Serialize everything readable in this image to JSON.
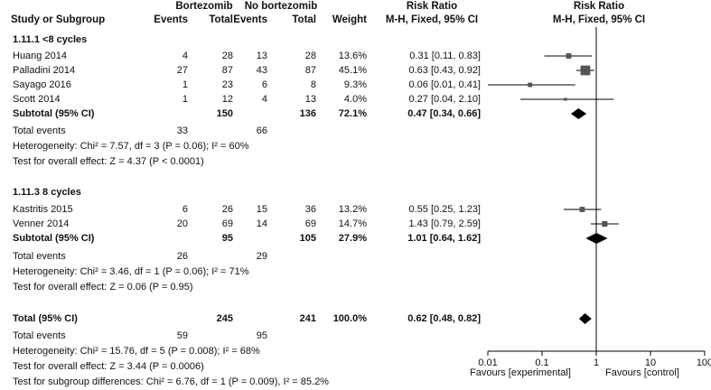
{
  "chart_data": {
    "type": "table",
    "subtype": "forest-plot",
    "title": "",
    "header": {
      "group1": "Bortezomib",
      "group2": "No bortezomib",
      "rr_title": "Risk Ratio",
      "rr_method": "M-H, Fixed, 95% CI",
      "plot_title": "Risk Ratio",
      "plot_method": "M-H, Fixed, 95% CI",
      "study": "Study or Subgroup",
      "events": "Events",
      "total": "Total",
      "events2": "Events",
      "total2": "Total",
      "weight": "Weight"
    },
    "subgroups": [
      {
        "title": "1.11.1 <8 cycles",
        "studies": [
          {
            "name": "Huang 2014",
            "e1": "4",
            "t1": "28",
            "e2": "13",
            "t2": "28",
            "weight": "13.6%",
            "rr_text": "0.31 [0.11, 0.83]",
            "rr": 0.31,
            "lo": 0.11,
            "hi": 0.83
          },
          {
            "name": "Palladini 2014",
            "e1": "27",
            "t1": "87",
            "e2": "43",
            "t2": "87",
            "weight": "45.1%",
            "rr_text": "0.63 [0.43, 0.92]",
            "rr": 0.63,
            "lo": 0.43,
            "hi": 0.92
          },
          {
            "name": "Sayago 2016",
            "e1": "1",
            "t1": "23",
            "e2": "6",
            "t2": "8",
            "weight": "9.3%",
            "rr_text": "0.06 [0.01, 0.41]",
            "rr": 0.06,
            "lo": 0.01,
            "hi": 0.41
          },
          {
            "name": "Scott 2014",
            "e1": "1",
            "t1": "12",
            "e2": "4",
            "t2": "13",
            "weight": "4.0%",
            "rr_text": "0.27 [0.04, 2.10]",
            "rr": 0.27,
            "lo": 0.04,
            "hi": 2.1
          }
        ],
        "subtotal": {
          "label": "Subtotal (95% CI)",
          "t1": "150",
          "t2": "136",
          "weight": "72.1%",
          "rr_text": "0.47 [0.34, 0.66]",
          "rr": 0.47,
          "lo": 0.34,
          "hi": 0.66
        },
        "events_label": "Total events",
        "events1": "33",
        "events2": "66",
        "heterogeneity": "Heterogeneity: Chi² = 7.57, df = 3 (P = 0.06); I² = 60%",
        "overall": "Test for overall effect: Z = 4.37 (P < 0.0001)"
      },
      {
        "title": "1.11.3 8 cycles",
        "studies": [
          {
            "name": "Kastritis 2015",
            "e1": "6",
            "t1": "26",
            "e2": "15",
            "t2": "36",
            "weight": "13.2%",
            "rr_text": "0.55 [0.25, 1.23]",
            "rr": 0.55,
            "lo": 0.25,
            "hi": 1.23
          },
          {
            "name": "Venner 2014",
            "e1": "20",
            "t1": "69",
            "e2": "14",
            "t2": "69",
            "weight": "14.7%",
            "rr_text": "1.43 [0.79, 2.59]",
            "rr": 1.43,
            "lo": 0.79,
            "hi": 2.59
          }
        ],
        "subtotal": {
          "label": "Subtotal (95% CI)",
          "t1": "95",
          "t2": "105",
          "weight": "27.9%",
          "rr_text": "1.01 [0.64, 1.62]",
          "rr": 1.01,
          "lo": 0.64,
          "hi": 1.62
        },
        "events_label": "Total events",
        "events1": "26",
        "events2": "29",
        "heterogeneity": "Heterogeneity: Chi² = 3.46, df = 1 (P = 0.06); I² = 71%",
        "overall": "Test for overall effect: Z = 0.06 (P = 0.95)"
      }
    ],
    "total": {
      "label": "Total (95% CI)",
      "t1": "245",
      "t2": "241",
      "weight": "100.0%",
      "rr_text": "0.62 [0.48, 0.82]",
      "rr": 0.62,
      "lo": 0.48,
      "hi": 0.82,
      "events_label": "Total events",
      "events1": "59",
      "events2": "95",
      "heterogeneity": "Heterogeneity: Chi² = 15.76, df = 5 (P = 0.008); I² = 68%",
      "overall": "Test for overall effect: Z = 3.44 (P = 0.0006)",
      "subgroup_diff": "Test for subgroup differences: Chi² = 6.76, df = 1 (P = 0.009), I² = 85.2%"
    },
    "axis": {
      "scale": "log",
      "xlim": [
        0.01,
        100
      ],
      "ticks": [
        0.01,
        0.1,
        1,
        10,
        100
      ],
      "tick_labels": [
        "0.01",
        "0.1",
        "1",
        "10",
        "100"
      ],
      "favours_left": "Favours [experimental]",
      "favours_right": "Favours [control]"
    }
  }
}
